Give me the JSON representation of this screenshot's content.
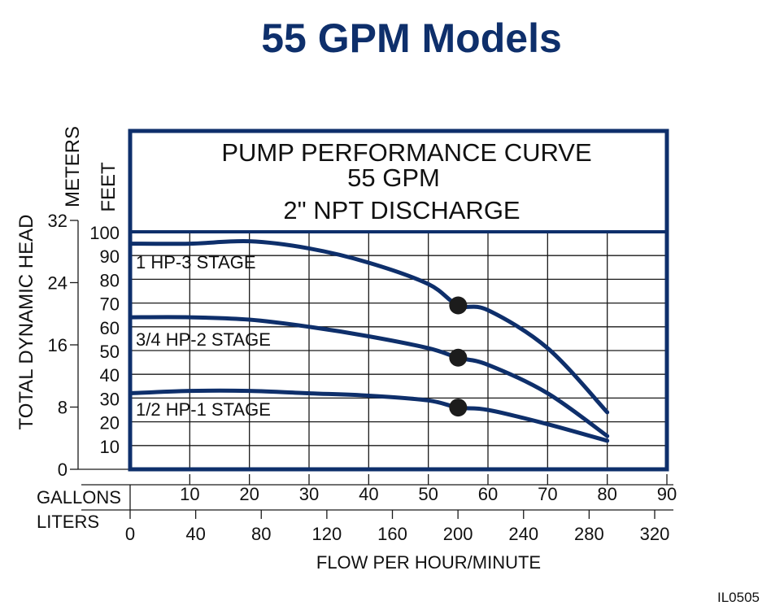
{
  "page_title": "55 GPM Models",
  "colors": {
    "title": "#0e2f6b",
    "frame": "#0e2f6b",
    "curve": "#0e2f6b",
    "grid": "#1a1a1a",
    "marker": "#1c1c1c"
  },
  "image_code": "IL0505",
  "chart_data": {
    "type": "line",
    "title_lines": [
      "PUMP PERFORMANCE CURVE",
      "55 GPM",
      "2\" NPT DISCHARGE"
    ],
    "xlabel": "FLOW PER HOUR/MINUTE",
    "ylabel": "TOTAL DYNAMIC HEAD",
    "x_axis_label": "GALLONS",
    "x2_axis_label": "LITERS",
    "y_axis_label": "FEET",
    "y2_axis_label": "METERS",
    "xlim": [
      0,
      90
    ],
    "ylim": [
      0,
      100
    ],
    "x_ticks": [
      10,
      20,
      30,
      40,
      50,
      60,
      70,
      80,
      90
    ],
    "x2_ticks": [
      0,
      40,
      80,
      120,
      160,
      200,
      240,
      280,
      320
    ],
    "y_ticks": [
      10,
      20,
      30,
      40,
      50,
      60,
      70,
      80,
      90,
      100
    ],
    "y2_ticks": [
      0,
      8,
      16,
      24,
      32
    ],
    "grid": true,
    "series": [
      {
        "name": "1 HP-3 STAGE",
        "x": [
          0,
          10,
          20,
          30,
          40,
          50,
          55,
          60,
          70,
          80
        ],
        "y": [
          95,
          95,
          96,
          93,
          87,
          78,
          69,
          67,
          51,
          24
        ]
      },
      {
        "name": "3/4 HP-2 STAGE",
        "x": [
          0,
          10,
          20,
          30,
          40,
          50,
          55,
          60,
          70,
          80
        ],
        "y": [
          64,
          64,
          63,
          60,
          56,
          51,
          47,
          44,
          32,
          14
        ]
      },
      {
        "name": "1/2 HP-1 STAGE",
        "x": [
          0,
          10,
          20,
          30,
          40,
          50,
          55,
          60,
          70,
          80
        ],
        "y": [
          32,
          33,
          33,
          32,
          31,
          29,
          26,
          25,
          19,
          12
        ]
      }
    ],
    "markers": [
      {
        "x": 55,
        "y": 69
      },
      {
        "x": 55,
        "y": 47
      },
      {
        "x": 55,
        "y": 26
      }
    ]
  }
}
